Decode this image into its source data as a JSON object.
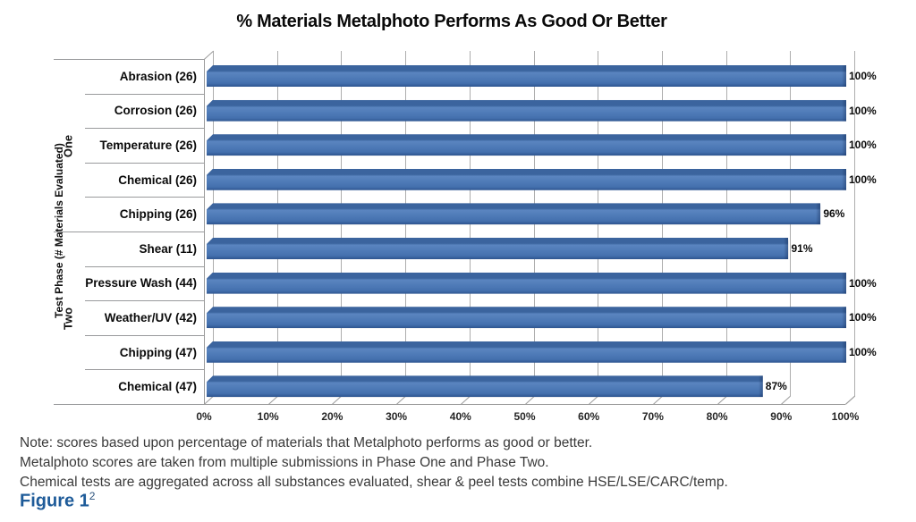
{
  "title": "% Materials Metalphoto Performs As Good Or Better",
  "y_axis": {
    "label": "Test Phase (# Materials Evaluated)",
    "groups": [
      {
        "label": "One"
      },
      {
        "label": "Two"
      }
    ]
  },
  "x_axis": {
    "ticks": [
      "0%",
      "10%",
      "20%",
      "30%",
      "40%",
      "50%",
      "60%",
      "70%",
      "80%",
      "90%",
      "100%"
    ]
  },
  "chart_data": {
    "type": "bar",
    "orientation": "horizontal",
    "title": "% Materials Metalphoto Performs As Good Or Better",
    "ylabel": "Test Phase (# Materials Evaluated)",
    "xlabel": "",
    "xlim": [
      0,
      100
    ],
    "xticks": [
      "0%",
      "10%",
      "20%",
      "30%",
      "40%",
      "50%",
      "60%",
      "70%",
      "80%",
      "90%",
      "100%"
    ],
    "grid": true,
    "bar_color": "#4F81BD",
    "groups": [
      {
        "name": "One",
        "rows": [
          {
            "category": "Abrasion (26)",
            "value": 100,
            "label": "100%"
          },
          {
            "category": "Corrosion (26)",
            "value": 100,
            "label": "100%"
          },
          {
            "category": "Temperature (26)",
            "value": 100,
            "label": "100%"
          },
          {
            "category": "Chemical (26)",
            "value": 100,
            "label": "100%"
          },
          {
            "category": "Chipping (26)",
            "value": 96,
            "label": "96%"
          }
        ]
      },
      {
        "name": "Two",
        "rows": [
          {
            "category": "Shear (11)",
            "value": 91,
            "label": "91%"
          },
          {
            "category": "Pressure Wash (44)",
            "value": 100,
            "label": "100%"
          },
          {
            "category": "Weather/UV (42)",
            "value": 100,
            "label": "100%"
          },
          {
            "category": "Chipping (47)",
            "value": 100,
            "label": "100%"
          },
          {
            "category": "Chemical (47)",
            "value": 87,
            "label": "87%"
          }
        ]
      }
    ]
  },
  "notes": [
    "Note: scores based upon percentage of materials that Metalphoto performs as good or better.",
    "Metalphoto scores are taken from multiple submissions in Phase One and Phase Two.",
    "Chemical tests are aggregated across all substances evaluated, shear & peel tests combine HSE/LSE/CARC/temp."
  ],
  "figure": {
    "label": "Figure 1",
    "superscript": "2"
  },
  "colors": {
    "bar": "#4F81BD",
    "bar_edge": "#2D548F",
    "grid": "#ADADAD",
    "axis": "#9B9B9B",
    "title_text": "#0A0A0A",
    "note_text": "#3A3A3A",
    "figure_label": "#1E5B99"
  }
}
